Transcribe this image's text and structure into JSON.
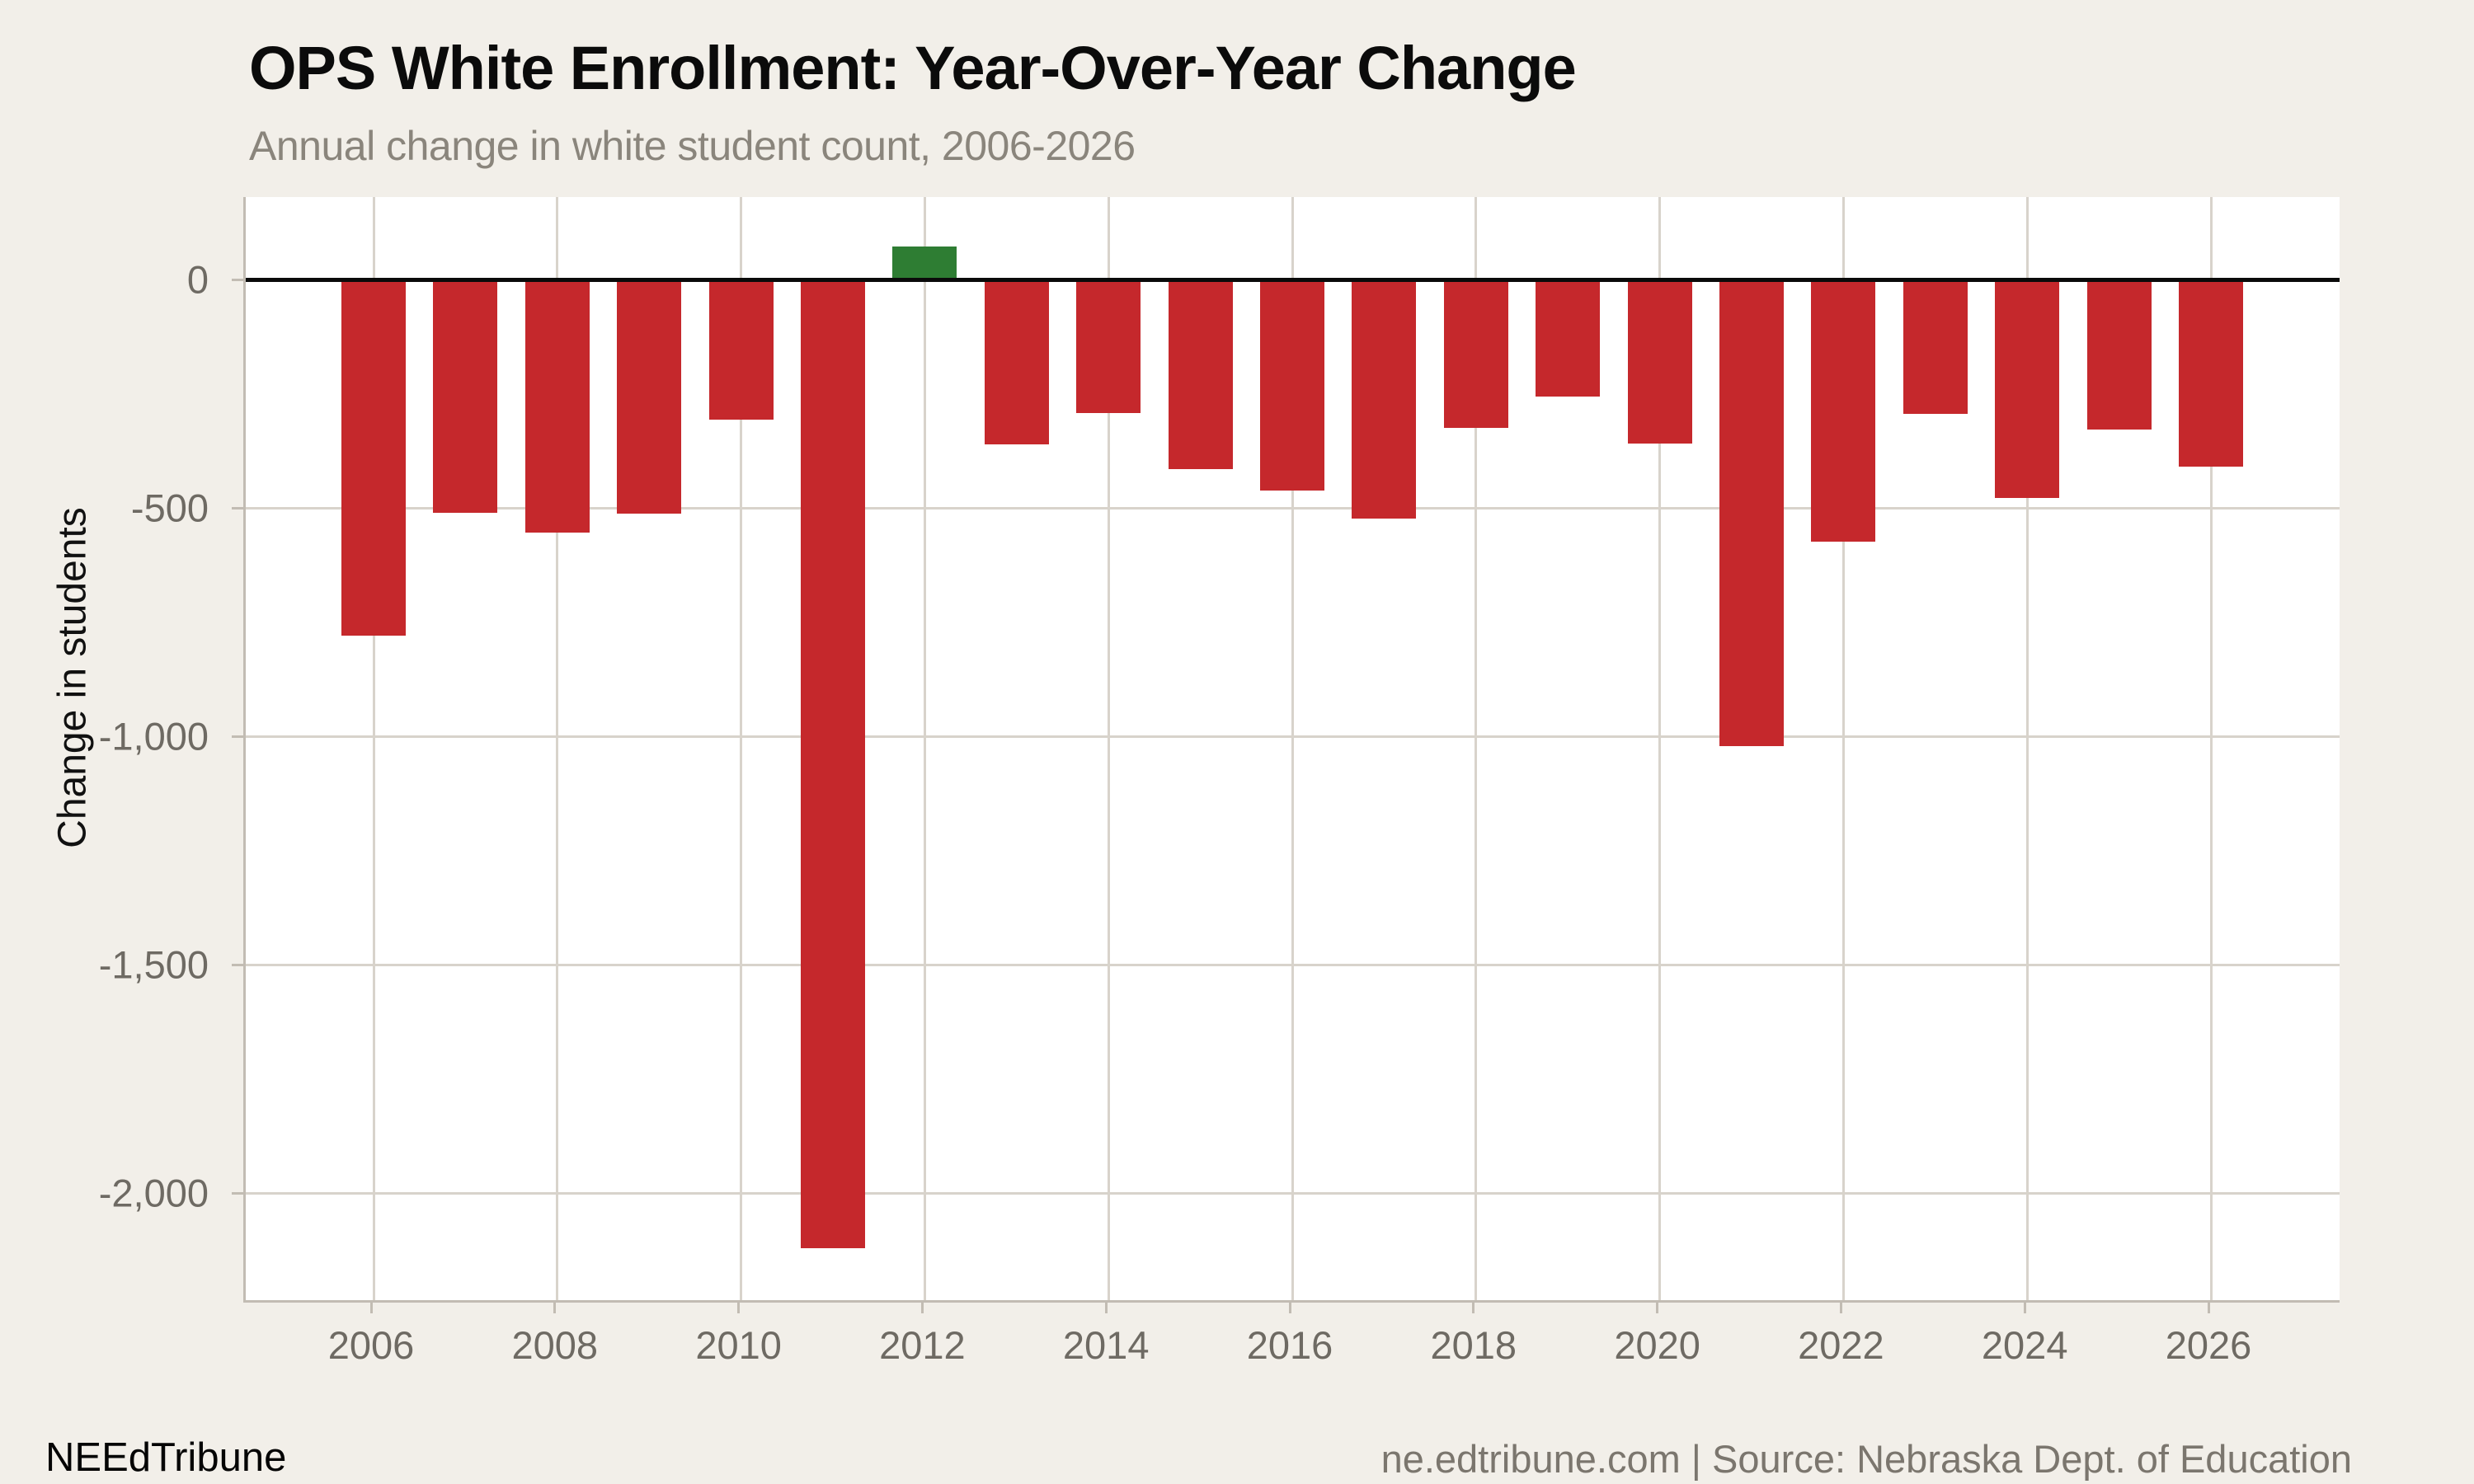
{
  "page": {
    "title": "OPS White Enrollment: Year-Over-Year Change",
    "subtitle": "Annual change in white student count, 2006-2026",
    "footer_left": "NEEdTribune",
    "footer_right": "ne.edtribune.com | Source: Nebraska Dept. of Education"
  },
  "colors": {
    "background": "#f2efe9",
    "plot_background": "#ffffff",
    "negative_bar": "#c5282c",
    "positive_bar": "#2e7d33",
    "gridline": "#d8d3cb",
    "zero_line": "#0a0a0a",
    "axis_text": "#6e6a63",
    "subtitle_text": "#8a857c",
    "source_text": "#7b766e"
  },
  "chart_data": {
    "type": "bar",
    "title": "OPS White Enrollment: Year-Over-Year Change",
    "subtitle": "Annual change in white student count, 2006-2026",
    "xlabel": "",
    "ylabel": "Change in students",
    "x": [
      2006,
      2007,
      2008,
      2009,
      2010,
      2011,
      2012,
      2013,
      2014,
      2015,
      2016,
      2017,
      2018,
      2019,
      2020,
      2021,
      2022,
      2023,
      2024,
      2025,
      2026
    ],
    "values": [
      -780,
      -511,
      -554,
      -513,
      -307,
      -2121,
      72,
      -361,
      -292,
      -415,
      -462,
      -523,
      -325,
      -256,
      -360,
      -1021,
      -574,
      -295,
      -478,
      -329,
      -409
    ],
    "x_tick_labels": [
      "2006",
      "2008",
      "2010",
      "2012",
      "2014",
      "2016",
      "2018",
      "2020",
      "2022",
      "2024",
      "2026"
    ],
    "y_ticks": [
      0,
      -500,
      -1000,
      -1500,
      -2000
    ],
    "y_tick_labels": [
      "0",
      "-500",
      "-1,000",
      "-1,500",
      "-2,000"
    ],
    "ylim": [
      -2235,
      180
    ],
    "grid": true,
    "legend": false,
    "bar_color_rule": "positive values green, negative values red"
  }
}
